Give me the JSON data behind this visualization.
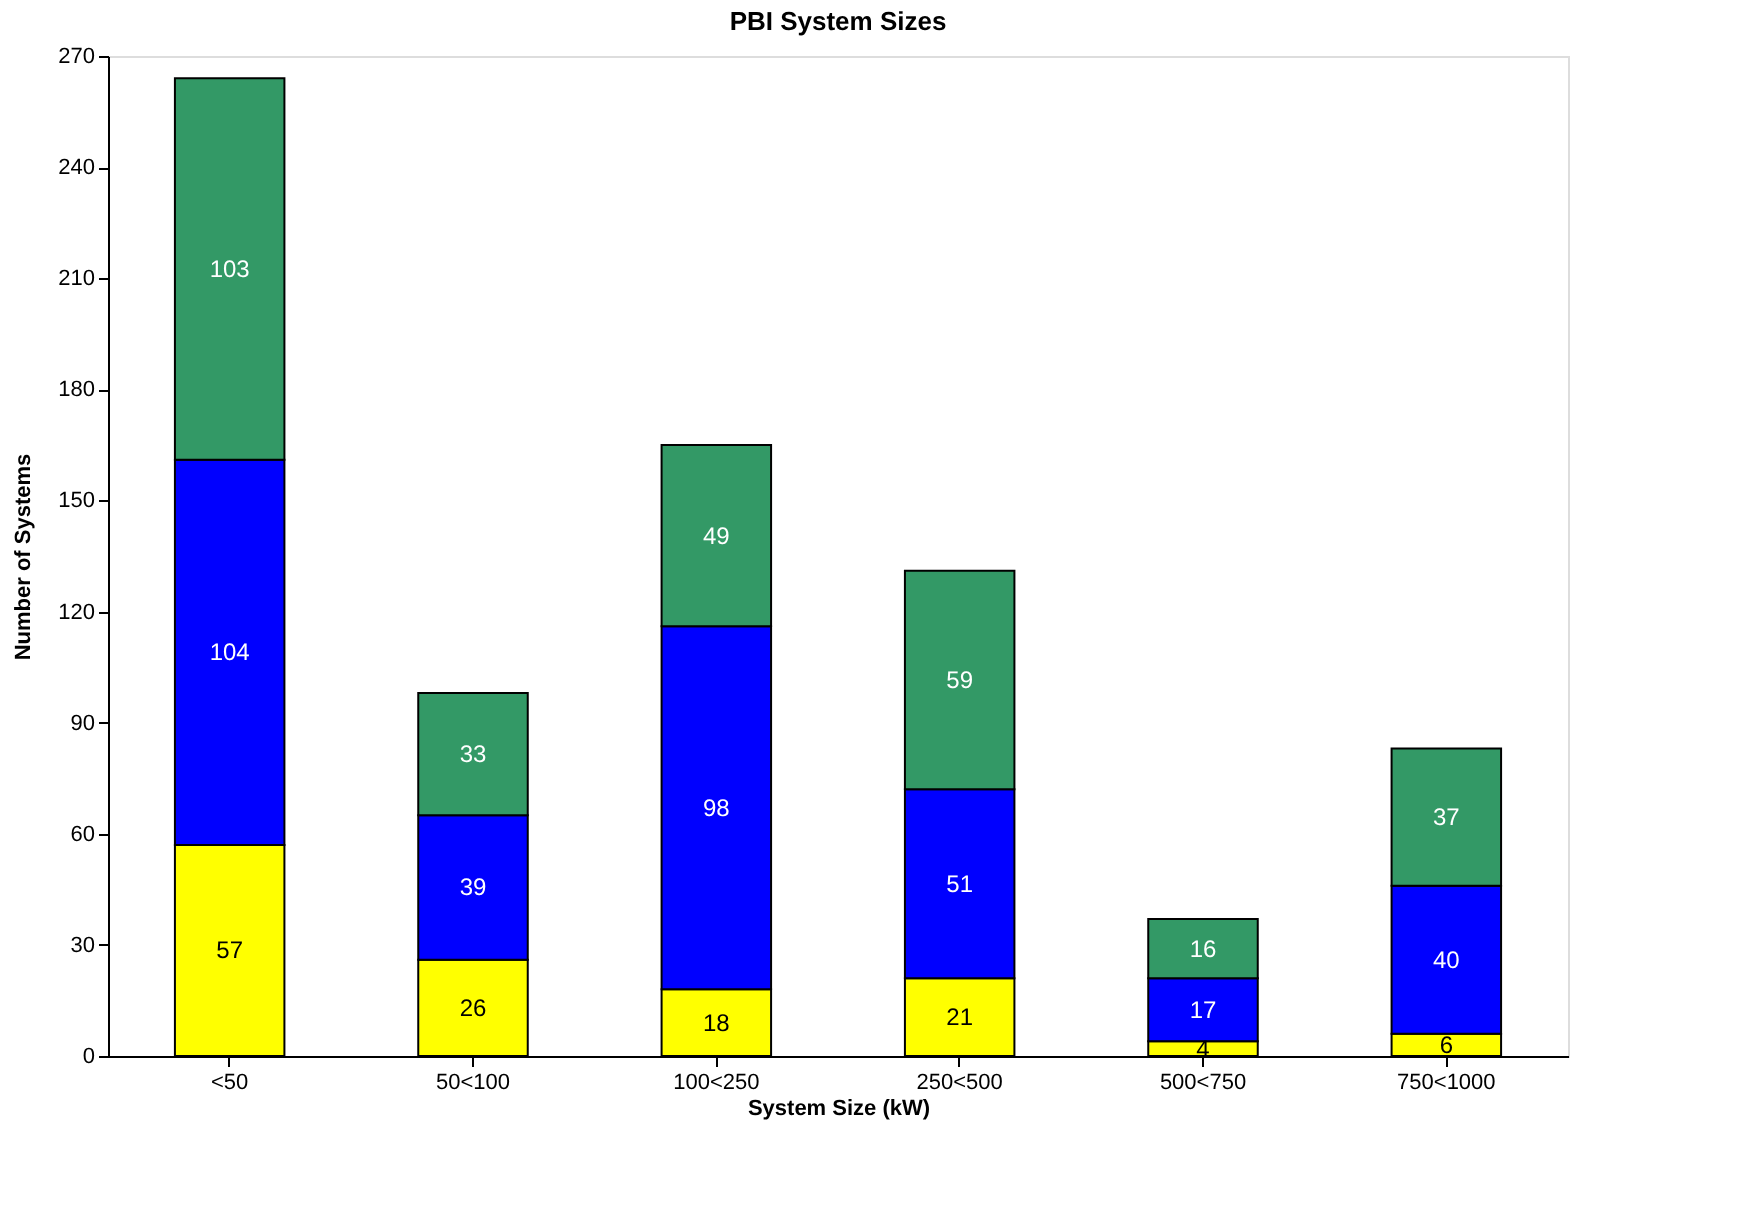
{
  "chart_data": {
    "type": "bar",
    "title": "PBI System Sizes",
    "xlabel": "System Size (kW)",
    "ylabel": "Number of Systems",
    "categories": [
      "<50",
      "50<100",
      "100<250",
      "250<500",
      "500<750",
      "750<1000"
    ],
    "stacked": true,
    "data_labels": true,
    "grid": false,
    "ylim": [
      0,
      270
    ],
    "yticks": [
      0,
      30,
      60,
      90,
      120,
      150,
      180,
      210,
      240,
      270
    ],
    "series": [
      {
        "color": "#ffff00",
        "values": [
          57,
          26,
          18,
          21,
          4,
          6
        ]
      },
      {
        "color": "#0000ff",
        "values": [
          104,
          39,
          98,
          51,
          17,
          40
        ]
      },
      {
        "color": "#339966",
        "values": [
          103,
          33,
          49,
          59,
          16,
          37
        ]
      }
    ]
  }
}
